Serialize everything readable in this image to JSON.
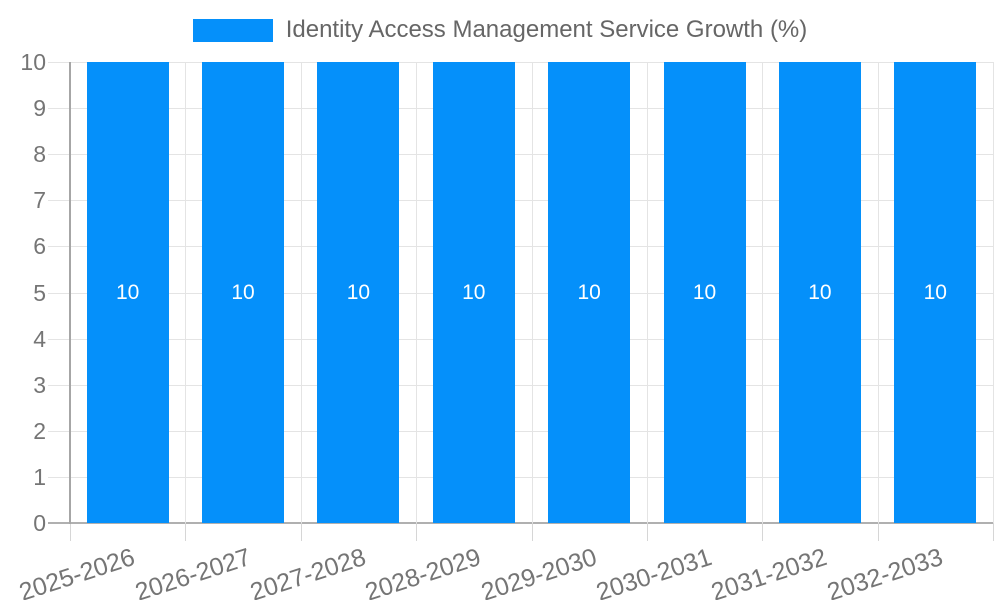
{
  "chart_data": {
    "type": "bar",
    "title": "Identity Access Management Service Growth (%)",
    "categories": [
      "2025-2026",
      "2026-2027",
      "2027-2028",
      "2028-2029",
      "2029-2030",
      "2030-2031",
      "2031-2032",
      "2032-2033"
    ],
    "series": [
      {
        "name": "Identity Access Management Service Growth (%)",
        "values": [
          10,
          10,
          10,
          10,
          10,
          10,
          10,
          10
        ]
      }
    ],
    "bar_value_labels": [
      "10",
      "10",
      "10",
      "10",
      "10",
      "10",
      "10",
      "10"
    ],
    "xlabel": "",
    "ylabel": "",
    "ylim": [
      0,
      10
    ],
    "ytick_labels": [
      "0",
      "1",
      "2",
      "3",
      "4",
      "5",
      "6",
      "7",
      "8",
      "9",
      "10"
    ],
    "grid": true,
    "legend_position": "top",
    "x_label_rotation_deg": -18
  },
  "colors": {
    "bar": "#0590fa",
    "bar_value_text": "#ffffff",
    "gridline": "#e4e4e4",
    "x_axis_line": "#b0b0b0",
    "y_axis_line": "#a6a6a6",
    "tick_mark": "#d6d6d6",
    "axis_text": "#757575",
    "legend_text": "#666666",
    "background": "#ffffff"
  }
}
